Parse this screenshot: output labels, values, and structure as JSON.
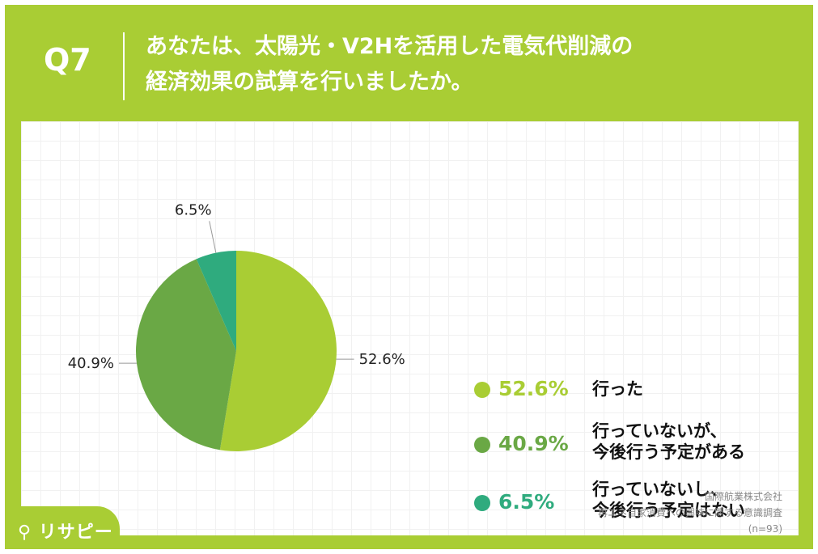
{
  "header": {
    "question_number": "Q7",
    "title_line1": "あなたは、太陽光・V2Hを活用した電気代削減の",
    "title_line2": "経済効果の試算を行いましたか。"
  },
  "colors": {
    "frame": "#a9cd34",
    "slice1": "#a9cd34",
    "slice2": "#6aa845",
    "slice3": "#2fab7e"
  },
  "chart_data": {
    "type": "pie",
    "categories": [
      "行った",
      "行っていないが、今後行う予定がある",
      "行っていないし、今後行う予定はない"
    ],
    "values": [
      52.6,
      40.9,
      6.5
    ],
    "value_labels": [
      "52.6%",
      "40.9%",
      "6.5%"
    ]
  },
  "legend": [
    {
      "pct": "52.6%",
      "label": "行った"
    },
    {
      "pct": "40.9%",
      "label": "行っていないが、\n今後行う予定がある"
    },
    {
      "pct": "6.5%",
      "label": "行っていないし、\n今後行う予定はない"
    }
  ],
  "source": {
    "company": "国際航業株式会社",
    "survey": "再エネ自家消費への興味に関する意識調査",
    "n": "(n=93)"
  },
  "logo": {
    "text": "リサピー",
    "icon": "pin-icon"
  }
}
